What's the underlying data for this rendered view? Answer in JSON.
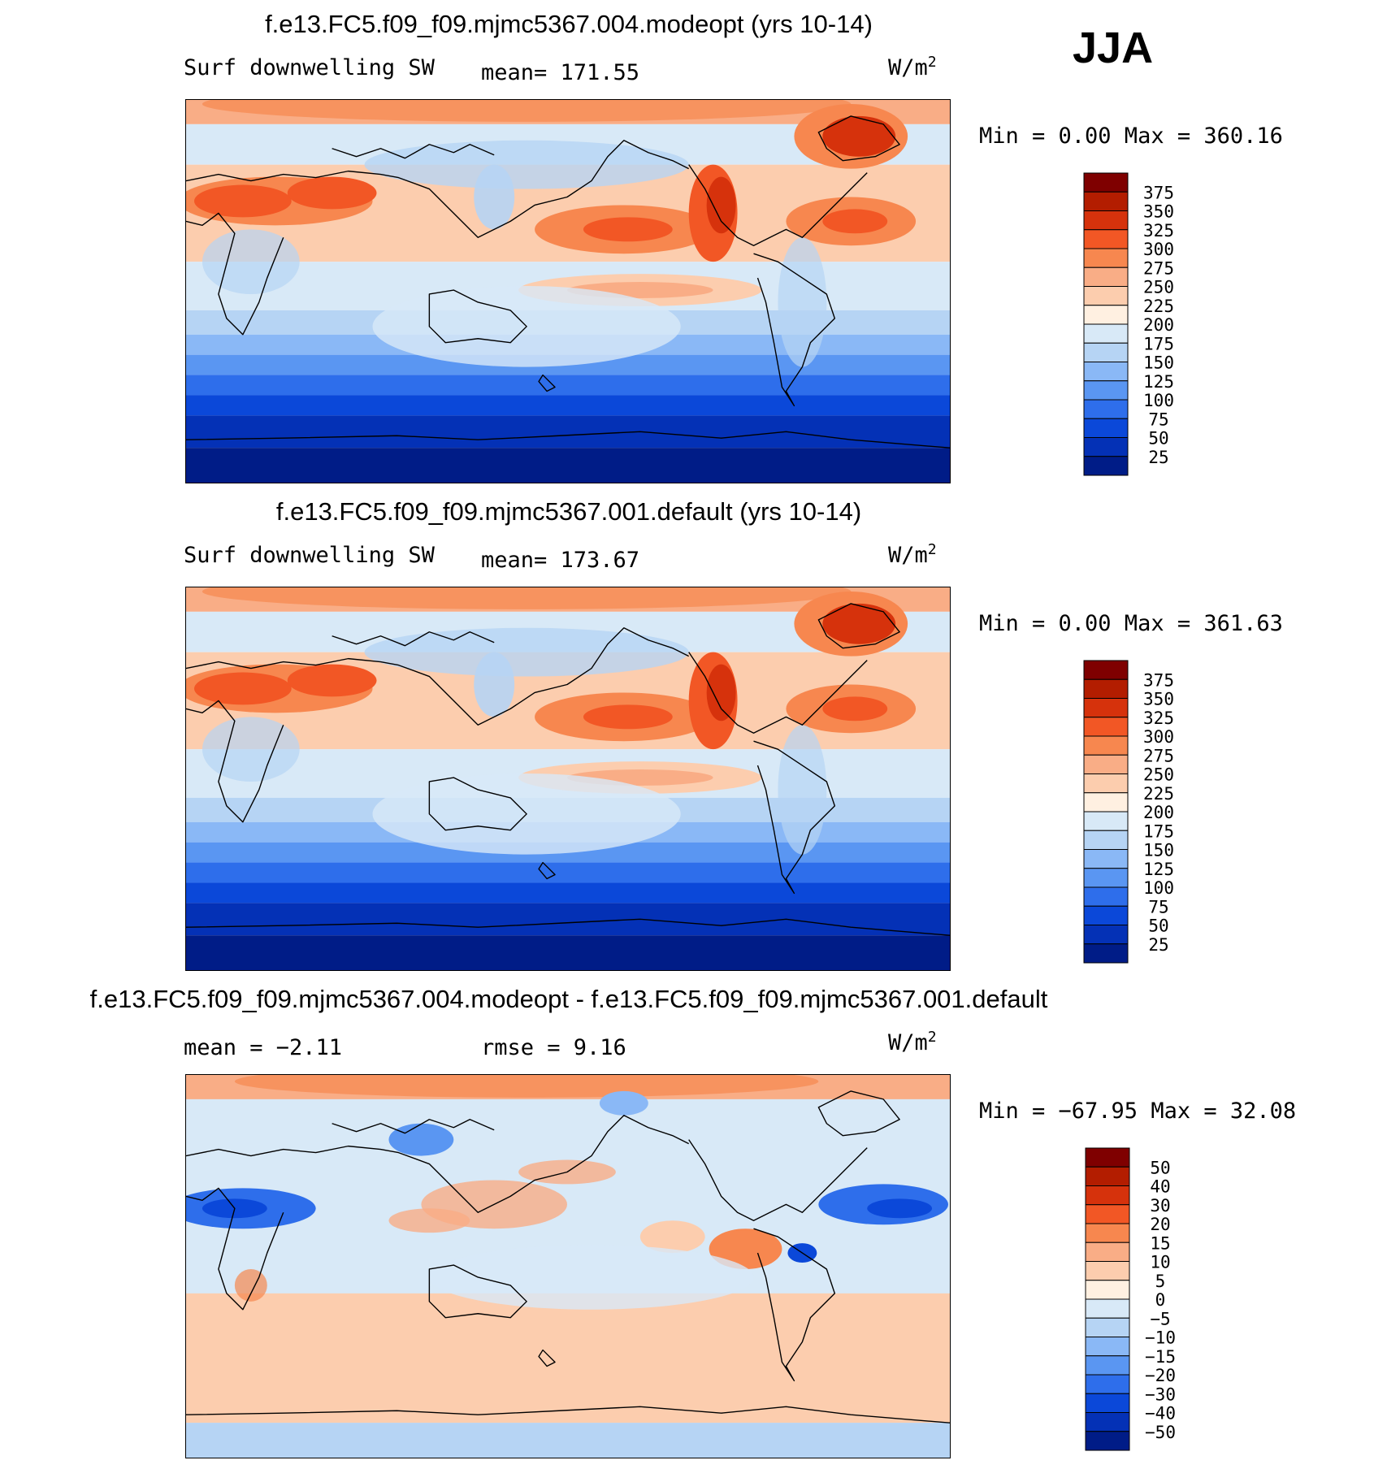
{
  "season": "JJA",
  "units": {
    "base": "W/m",
    "exp": "2"
  },
  "panels": [
    {
      "title": "f.e13.FC5.f09_f09.mjmc5367.004.modeopt (yrs 10-14)",
      "left_label": "Surf  downwelling  SW",
      "center_label": "mean=  171.55",
      "minmax": "Min  =     0.00  Max  =  360.16",
      "colorbar": {
        "labels": [
          "375",
          "350",
          "325",
          "300",
          "275",
          "250",
          "225",
          "200",
          "175",
          "150",
          "125",
          "100",
          "75",
          "50",
          "25"
        ],
        "colors": [
          "#7f0000",
          "#b31d00",
          "#d6320c",
          "#f25725",
          "#f7874f",
          "#f9ad86",
          "#fccdae",
          "#fff0e1",
          "#d8e9f7",
          "#b6d4f4",
          "#8ab8f6",
          "#5a96f2",
          "#2e6eeb",
          "#0b48d9",
          "#0431b6",
          "#001c87"
        ]
      },
      "map_type": "sw"
    },
    {
      "title": "f.e13.FC5.f09_f09.mjmc5367.001.default (yrs 10-14)",
      "left_label": "Surf  downwelling  SW",
      "center_label": "mean=  173.67",
      "minmax": "Min  =     0.00  Max  =  361.63",
      "colorbar": {
        "labels": [
          "375",
          "350",
          "325",
          "300",
          "275",
          "250",
          "225",
          "200",
          "175",
          "150",
          "125",
          "100",
          "75",
          "50",
          "25"
        ],
        "colors": [
          "#7f0000",
          "#b31d00",
          "#d6320c",
          "#f25725",
          "#f7874f",
          "#f9ad86",
          "#fccdae",
          "#fff0e1",
          "#d8e9f7",
          "#b6d4f4",
          "#8ab8f6",
          "#5a96f2",
          "#2e6eeb",
          "#0b48d9",
          "#0431b6",
          "#001c87"
        ]
      },
      "map_type": "sw"
    },
    {
      "title": "f.e13.FC5.f09_f09.mjmc5367.004.modeopt - f.e13.FC5.f09_f09.mjmc5367.001.default",
      "left_label": "mean  =    −2.11",
      "center_label": "rmse  =     9.16",
      "minmax": "Min  =  −67.95  Max  =    32.08",
      "colorbar": {
        "labels": [
          "50",
          "40",
          "30",
          "20",
          "15",
          "10",
          "5",
          "0",
          "−5",
          "−10",
          "−15",
          "−20",
          "−30",
          "−40",
          "−50"
        ],
        "colors": [
          "#7f0000",
          "#b31d00",
          "#d6320c",
          "#f25725",
          "#f7874f",
          "#f9ad86",
          "#fccdae",
          "#fff0e1",
          "#d8e9f7",
          "#b6d4f4",
          "#8ab8f6",
          "#5a96f2",
          "#2e6eeb",
          "#0b48d9",
          "#0431b6",
          "#001c87"
        ]
      },
      "map_type": "diff"
    }
  ]
}
